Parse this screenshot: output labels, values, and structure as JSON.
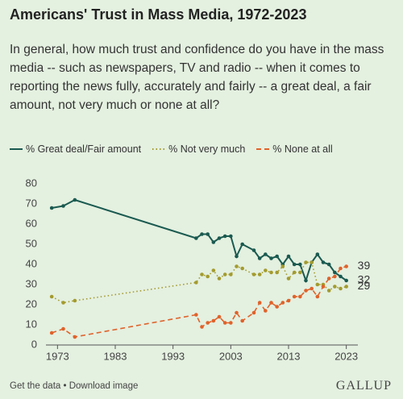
{
  "chart_data": {
    "type": "line",
    "title": "Americans' Trust in Mass Media, 1972-2023",
    "subtitle": "In general, how much trust and confidence do you have in the mass media -- such as newspapers, TV and radio -- when it comes to reporting the news fully, accurately and fairly -- a great deal, a fair amount, not very much or none at all?",
    "x": [
      1972,
      1974,
      1976,
      1997,
      1998,
      1999,
      2000,
      2001,
      2002,
      2003,
      2004,
      2005,
      2007,
      2008,
      2009,
      2010,
      2011,
      2012,
      2013,
      2014,
      2015,
      2016,
      2017,
      2018,
      2019,
      2020,
      2021,
      2022,
      2023
    ],
    "series": [
      {
        "name": "% Great deal/Fair amount",
        "color": "#1a5a50",
        "style": "solid",
        "values": [
          68,
          69,
          72,
          53,
          55,
          55,
          51,
          53,
          54,
          54,
          44,
          50,
          47,
          43,
          45,
          43,
          44,
          40,
          44,
          40,
          40,
          32,
          41,
          45,
          41,
          40,
          36,
          34,
          32
        ]
      },
      {
        "name": "% Not very much",
        "color": "#a39b2e",
        "style": "dotted",
        "values": [
          24,
          21,
          22,
          31,
          35,
          34,
          37,
          33,
          35,
          35,
          39,
          38,
          35,
          35,
          37,
          36,
          36,
          39,
          33,
          36,
          36,
          41,
          41,
          30,
          30,
          27,
          29,
          28,
          29
        ]
      },
      {
        "name": "% None at all",
        "color": "#e0622a",
        "style": "dashed",
        "values": [
          6,
          8,
          4,
          15,
          9,
          11,
          12,
          14,
          11,
          11,
          16,
          12,
          16,
          21,
          17,
          21,
          19,
          21,
          22,
          24,
          24,
          27,
          28,
          24,
          29,
          33,
          34,
          38,
          39
        ]
      }
    ],
    "xlim": [
      1971,
      2025
    ],
    "xticks": [
      1973,
      1983,
      1993,
      2003,
      2013,
      2023
    ],
    "ylim": [
      0,
      80
    ],
    "yticks": [
      0,
      10,
      20,
      30,
      40,
      50,
      60,
      70,
      80
    ],
    "grid": false
  },
  "footer": {
    "links": "Get the data • Download image",
    "brand": "GALLUP"
  }
}
